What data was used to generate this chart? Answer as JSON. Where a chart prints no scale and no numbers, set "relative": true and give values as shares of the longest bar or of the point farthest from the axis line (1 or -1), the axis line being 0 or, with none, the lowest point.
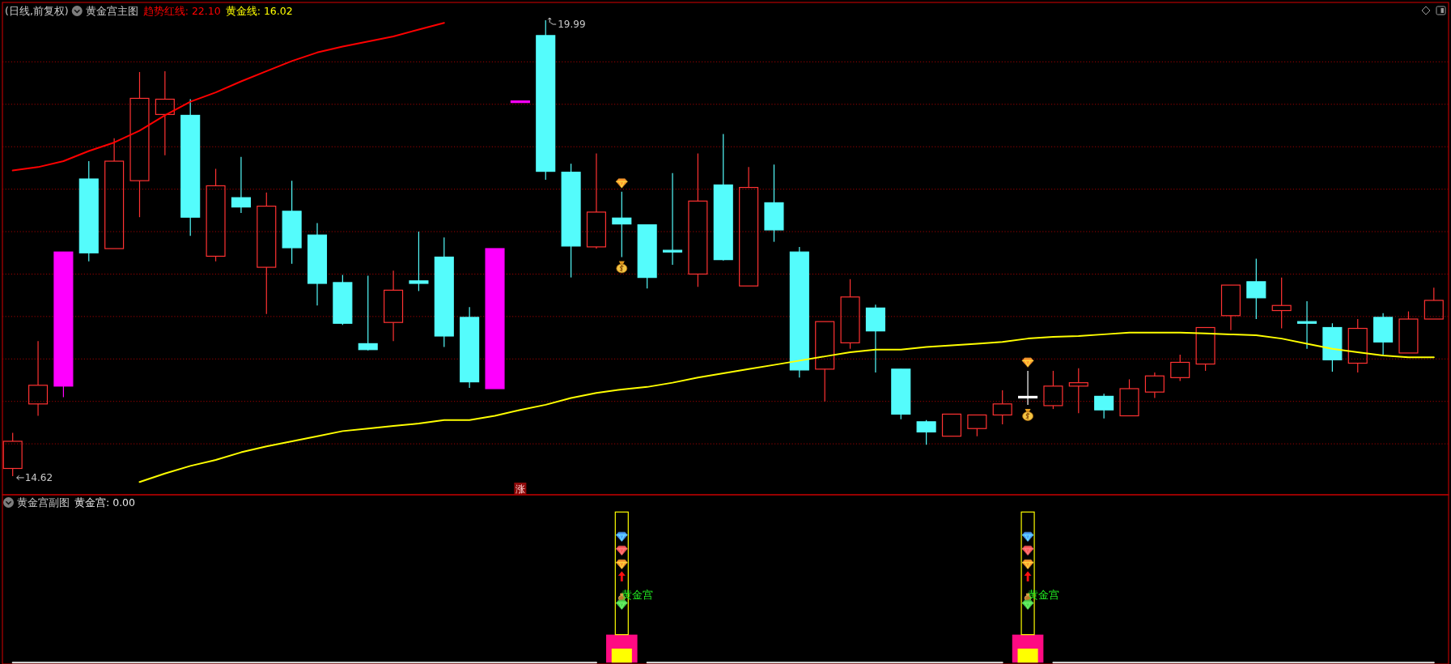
{
  "chart_data": [
    {
      "type": "candlestick",
      "title": "黄金宫主图",
      "subtitle": "(日线,前复权)",
      "legend": "top left",
      "tick_labels": false,
      "grid": "y",
      "categories": [
        null,
        null,
        null,
        null,
        null,
        null,
        null,
        null,
        null,
        null,
        null,
        null,
        null,
        null,
        null,
        null,
        null,
        null,
        null,
        null,
        null,
        null,
        null,
        null,
        null,
        null,
        null,
        null,
        null,
        null,
        null,
        null,
        null,
        null,
        null,
        null,
        null,
        null,
        null,
        null,
        null,
        null,
        null,
        null,
        null,
        null,
        null,
        null,
        null,
        null,
        null,
        null,
        null,
        null,
        null,
        null,
        null
      ],
      "ylim": [
        14.4,
        20.2
      ],
      "yticks": [
        {
          "value": 15,
          "label": null
        },
        {
          "value": 15.5,
          "label": null
        },
        {
          "value": 16,
          "label": null
        },
        {
          "value": 16.5,
          "label": null
        },
        {
          "value": 17,
          "label": null
        },
        {
          "value": 17.5,
          "label": null
        },
        {
          "value": 18,
          "label": null
        },
        {
          "value": 18.5,
          "label": null
        },
        {
          "value": 19,
          "label": null
        },
        {
          "value": 19.5,
          "label": null
        }
      ],
      "color": "#ff3232",
      "ohlc": [
        [
          14.71,
          15.13,
          14.62,
          15.03
        ],
        [
          15.47,
          16.21,
          15.33,
          15.69
        ],
        [
          15.68,
          17.26,
          15.55,
          17.26
        ],
        [
          18.12,
          18.33,
          17.15,
          17.25
        ],
        [
          17.3,
          18.6,
          17.3,
          18.33
        ],
        [
          18.1,
          19.38,
          17.67,
          19.07
        ],
        [
          18.88,
          19.39,
          18.4,
          19.06
        ],
        [
          18.87,
          19.06,
          17.45,
          17.67
        ],
        [
          17.21,
          18.24,
          17.15,
          18.04
        ],
        [
          17.9,
          18.38,
          17.72,
          17.79
        ],
        [
          17.08,
          17.96,
          16.53,
          17.8
        ],
        [
          17.74,
          18.1,
          17.12,
          17.31
        ],
        [
          17.46,
          17.6,
          16.63,
          16.89
        ],
        [
          16.9,
          16.99,
          16.4,
          16.42
        ],
        [
          16.18,
          16.98,
          16.1,
          16.11
        ],
        [
          16.43,
          17.04,
          16.21,
          16.81
        ],
        [
          16.92,
          17.5,
          16.8,
          16.89
        ],
        [
          17.2,
          17.43,
          16.14,
          16.27
        ],
        [
          16.49,
          16.61,
          15.66,
          15.73
        ],
        [
          15.65,
          17.3,
          15.65,
          17.3
        ],
        [
          19.03,
          19.03,
          19.03,
          19.03
        ],
        [
          19.81,
          19.99,
          18.11,
          18.21
        ],
        [
          18.2,
          18.3,
          16.96,
          17.33
        ],
        [
          17.32,
          18.42,
          17.3,
          17.73
        ],
        [
          17.66,
          17.97,
          17.2,
          17.59
        ],
        [
          17.58,
          17.58,
          16.83,
          16.96
        ],
        [
          17.28,
          18.19,
          17.11,
          17.26
        ],
        [
          17.0,
          18.42,
          16.85,
          17.86
        ],
        [
          18.05,
          18.65,
          17.16,
          17.17
        ],
        [
          16.86,
          18.26,
          16.86,
          18.02
        ],
        [
          17.84,
          18.29,
          17.38,
          17.52
        ],
        [
          17.26,
          17.32,
          15.78,
          15.87
        ],
        [
          15.88,
          16.44,
          15.5,
          16.44
        ],
        [
          16.19,
          16.94,
          16.12,
          16.73
        ],
        [
          16.6,
          16.64,
          15.84,
          16.33
        ],
        [
          15.88,
          15.88,
          15.29,
          15.35
        ],
        [
          15.26,
          15.28,
          14.99,
          15.14
        ],
        [
          15.09,
          15.35,
          15.09,
          15.35
        ],
        [
          15.18,
          15.34,
          15.09,
          15.34
        ],
        [
          15.34,
          15.63,
          15.23,
          15.47
        ],
        [
          15.55,
          15.86,
          15.46,
          15.55
        ],
        [
          15.45,
          15.86,
          15.41,
          15.68
        ],
        [
          15.68,
          15.89,
          15.36,
          15.72
        ],
        [
          15.56,
          15.59,
          15.3,
          15.4
        ],
        [
          15.33,
          15.76,
          15.33,
          15.65
        ],
        [
          15.61,
          15.84,
          15.54,
          15.8
        ],
        [
          15.78,
          16.05,
          15.74,
          15.96
        ],
        [
          15.94,
          16.37,
          15.86,
          16.37
        ],
        [
          16.51,
          16.87,
          16.34,
          16.87
        ],
        [
          16.91,
          17.18,
          16.47,
          16.72
        ],
        [
          16.57,
          16.96,
          16.36,
          16.63
        ],
        [
          16.44,
          16.68,
          16.12,
          16.42
        ],
        [
          16.37,
          16.42,
          15.85,
          15.99
        ],
        [
          15.95,
          16.47,
          15.84,
          16.36
        ],
        [
          16.49,
          16.54,
          16.05,
          16.2
        ],
        [
          16.07,
          16.56,
          16.07,
          16.47
        ],
        [
          16.47,
          16.84,
          16.47,
          16.69
        ]
      ],
      "colors": [
        "#ff3232",
        "#ff3232",
        "#ff00ff",
        "#54fcfc",
        "#ff3232",
        "#ff3232",
        "#ff3232",
        "#54fcfc",
        "#ff3232",
        "#54fcfc",
        "#ff3232",
        "#54fcfc",
        "#54fcfc",
        "#54fcfc",
        "#54fcfc",
        "#ff3232",
        "#54fcfc",
        "#54fcfc",
        "#54fcfc",
        "#ff00ff",
        "#ff00ff",
        "#54fcfc",
        "#54fcfc",
        "#ff3232",
        "#54fcfc",
        "#54fcfc",
        "#54fcfc",
        "#ff3232",
        "#54fcfc",
        "#ff3232",
        "#54fcfc",
        "#54fcfc",
        "#ff3232",
        "#ff3232",
        "#54fcfc",
        "#54fcfc",
        "#54fcfc",
        "#ff3232",
        "#ff3232",
        "#ff3232",
        "#ffffff",
        "#ff3232",
        "#ff3232",
        "#54fcfc",
        "#ff3232",
        "#ff3232",
        "#ff3232",
        "#ff3232",
        "#ff3232",
        "#54fcfc",
        "#ff3232",
        "#54fcfc",
        "#54fcfc",
        "#ff3232",
        "#54fcfc",
        "#ff3232",
        "#ff3232"
      ],
      "series": [
        {
          "type": "line",
          "name": "趋势红线: 22.10",
          "color": "#ff0000",
          "values": [
            18.22,
            18.26,
            18.33,
            18.45,
            18.55,
            18.69,
            18.87,
            19.03,
            19.14,
            19.27,
            19.39,
            19.51,
            19.61,
            19.68,
            19.74,
            19.8,
            19.88,
            19.96,
            null,
            null,
            null,
            null,
            null,
            null,
            null,
            null,
            null,
            null,
            null,
            null,
            null,
            null,
            null,
            null,
            null,
            null,
            null,
            null,
            null,
            null,
            null,
            null,
            null,
            null,
            null,
            null,
            null,
            null,
            null,
            null,
            null,
            null,
            null,
            null,
            null,
            null,
            null
          ]
        },
        {
          "type": "line",
          "name": "黄金线: 16.02",
          "color": "#ffff00",
          "values": [
            null,
            null,
            null,
            null,
            null,
            14.55,
            14.65,
            14.74,
            14.81,
            14.9,
            14.97,
            15.03,
            15.09,
            15.15,
            15.18,
            15.21,
            15.24,
            15.28,
            15.28,
            15.33,
            15.4,
            15.46,
            15.54,
            15.6,
            15.64,
            15.67,
            15.72,
            15.78,
            15.83,
            15.88,
            15.93,
            15.98,
            16.03,
            16.08,
            16.11,
            16.11,
            16.14,
            16.16,
            16.18,
            16.2,
            16.24,
            16.26,
            16.27,
            16.29,
            16.31,
            16.31,
            16.31,
            16.3,
            16.29,
            16.28,
            16.24,
            16.18,
            16.12,
            16.08,
            16.04,
            16.02,
            16.02
          ]
        }
      ],
      "annotations": [
        "19.99",
        "14.62",
        "涨"
      ]
    },
    {
      "type": "bar",
      "title": "黄金宫副图",
      "legend": "top left",
      "relative": true,
      "categories": [
        null,
        null,
        null,
        null,
        null,
        null,
        null,
        null,
        null,
        null,
        null,
        null,
        null,
        null,
        null,
        null,
        null,
        null,
        null,
        null,
        null,
        null,
        null,
        null,
        null,
        null,
        null,
        null,
        null,
        null,
        null,
        null,
        null,
        null,
        null,
        null,
        null,
        null,
        null,
        null,
        null,
        null,
        null,
        null,
        null,
        null,
        null,
        null,
        null,
        null,
        null,
        null,
        null,
        null,
        null,
        null,
        null
      ],
      "series": [
        {
          "type": "line",
          "name": "黄金宫: 0.00",
          "color": "#e6e6e6",
          "values": [
            0,
            0,
            0,
            0,
            0,
            0,
            0,
            0,
            0,
            0,
            0,
            0,
            0,
            0,
            0,
            0,
            0,
            0,
            0,
            0,
            0,
            0,
            0,
            0,
            null,
            0,
            0,
            0,
            0,
            0,
            0,
            0,
            0,
            0,
            0,
            0,
            0,
            0,
            0,
            0,
            null,
            0,
            0,
            0,
            0,
            0,
            0,
            0,
            0,
            0,
            0,
            0,
            0,
            0,
            0,
            0,
            0
          ]
        },
        {
          "type": "bar",
          "color": "#ff0a82",
          "values": [
            null,
            null,
            null,
            null,
            null,
            null,
            null,
            null,
            null,
            null,
            null,
            null,
            null,
            null,
            null,
            null,
            null,
            null,
            null,
            null,
            null,
            null,
            null,
            null,
            1,
            null,
            null,
            null,
            null,
            null,
            null,
            null,
            null,
            null,
            null,
            null,
            null,
            null,
            null,
            null,
            1,
            null,
            null,
            null,
            null,
            null,
            null,
            null,
            null,
            null,
            null,
            null,
            null,
            null,
            null,
            null,
            null
          ]
        },
        {
          "type": "bar",
          "color": "#ffff00",
          "values": [
            null,
            null,
            null,
            null,
            null,
            null,
            null,
            null,
            null,
            null,
            null,
            null,
            null,
            null,
            null,
            null,
            null,
            null,
            null,
            null,
            null,
            null,
            null,
            null,
            0.5,
            null,
            null,
            null,
            null,
            null,
            null,
            null,
            null,
            null,
            null,
            null,
            null,
            null,
            null,
            null,
            0.5,
            null,
            null,
            null,
            null,
            null,
            null,
            null,
            null,
            null,
            null,
            null,
            null,
            null,
            null,
            null,
            null
          ]
        }
      ],
      "annotations": [
        "黄金宫",
        "黄金宫"
      ]
    }
  ]
}
